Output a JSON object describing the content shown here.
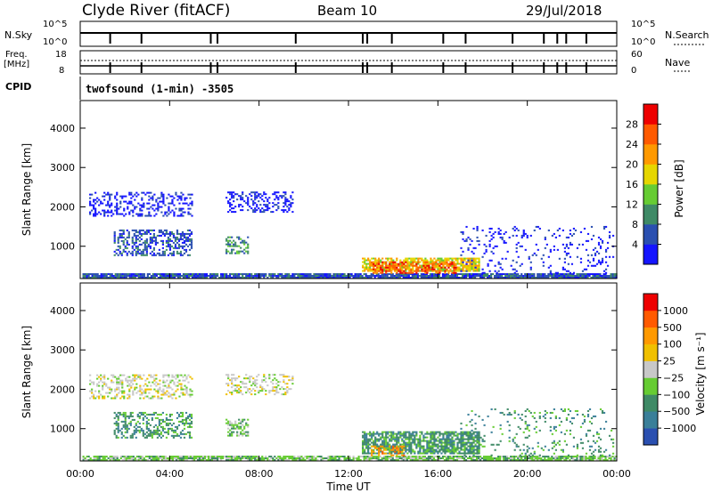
{
  "header": {
    "title": "Clyde River (fitACF)",
    "beam": "Beam 10",
    "date": "29/Jul/2018"
  },
  "strips": {
    "nsky_label": "N.Sky",
    "nsearch_label": "N.Search",
    "nsky_top_tick": "10^5",
    "nsky_bottom_tick": "10^0",
    "nsearch_top_tick": "10^5",
    "nsearch_bottom_tick": "10^0",
    "freq_label": "Freq.",
    "freq_unit": "[MHz]",
    "freq_top_tick": "18",
    "freq_bottom_tick": "8",
    "nave_label": "Nave",
    "nave_top_tick": "60",
    "nave_bottom_tick": "0",
    "cpid_label": "CPID",
    "cpid_text": "twofsound (1-min) -3505"
  },
  "colorbars": {
    "power": {
      "label": "Power [dB]",
      "ticks": [
        "28",
        "24",
        "20",
        "16",
        "12",
        "8",
        "4"
      ],
      "colors": [
        "#1414ff",
        "#2a4fb0",
        "#3f8a66",
        "#66cc33",
        "#e6d600",
        "#ff9900",
        "#ff5a00",
        "#ee0000"
      ]
    },
    "velocity": {
      "label": "Velocity [m s⁻¹]",
      "ticks": [
        "1000",
        "500",
        "100",
        "25",
        "−25",
        "−100",
        "−500",
        "−1000"
      ],
      "colors": [
        "#2a4fb0",
        "#3a7f99",
        "#3f8a66",
        "#66cc33",
        "#c8c8c8",
        "#f0c000",
        "#ff9900",
        "#ff5a00",
        "#ee0000"
      ]
    }
  },
  "chart_data": [
    {
      "type": "heatmap",
      "panel": "power",
      "xlabel": "Time UT",
      "ylabel": "Slant Range [km]",
      "x_ticks": [
        "00:00",
        "04:00",
        "08:00",
        "12:00",
        "16:00",
        "20:00",
        "00:00"
      ],
      "xlim_hours": [
        0,
        24
      ],
      "y_ticks": [
        1000,
        2000,
        3000,
        4000
      ],
      "ylim": [
        180,
        4700
      ],
      "regions": [
        {
          "t0": 0.1,
          "t1": 24.0,
          "r0": 180,
          "r1": 300,
          "level": 1,
          "density": 0.9
        },
        {
          "t0": 0.4,
          "t1": 5.0,
          "r0": 1750,
          "r1": 2350,
          "level": 0,
          "density": 0.35
        },
        {
          "t0": 6.5,
          "t1": 9.5,
          "r0": 1850,
          "r1": 2350,
          "level": 0,
          "density": 0.35
        },
        {
          "t0": 1.5,
          "t1": 5.0,
          "r0": 750,
          "r1": 1400,
          "level": 1,
          "density": 0.45
        },
        {
          "t0": 6.5,
          "t1": 7.5,
          "r0": 800,
          "r1": 1250,
          "level": 2,
          "density": 0.5
        },
        {
          "t0": 12.6,
          "t1": 17.8,
          "r0": 350,
          "r1": 700,
          "level": 4,
          "density": 0.75
        },
        {
          "t0": 13.0,
          "t1": 16.8,
          "r0": 300,
          "r1": 600,
          "level": 6,
          "density": 0.6
        },
        {
          "t0": 17.0,
          "t1": 23.8,
          "r0": 300,
          "r1": 1500,
          "level": 0,
          "density": 0.12
        }
      ]
    },
    {
      "type": "heatmap",
      "panel": "velocity",
      "xlabel": "Time UT",
      "ylabel": "Slant Range [km]",
      "x_ticks": [
        "00:00",
        "04:00",
        "08:00",
        "12:00",
        "16:00",
        "20:00",
        "00:00"
      ],
      "xlim_hours": [
        0,
        24
      ],
      "y_ticks": [
        1000,
        2000,
        3000,
        4000
      ],
      "ylim": [
        180,
        4700
      ],
      "regions": [
        {
          "t0": 0.1,
          "t1": 24.0,
          "r0": 180,
          "r1": 300,
          "level": 3,
          "density": 0.85
        },
        {
          "t0": 0.4,
          "t1": 5.0,
          "r0": 1750,
          "r1": 2350,
          "level": 4,
          "density": 0.35
        },
        {
          "t0": 6.5,
          "t1": 9.5,
          "r0": 1850,
          "r1": 2350,
          "level": 4,
          "density": 0.35
        },
        {
          "t0": 1.5,
          "t1": 5.0,
          "r0": 750,
          "r1": 1400,
          "level": 2,
          "density": 0.45
        },
        {
          "t0": 6.5,
          "t1": 7.5,
          "r0": 800,
          "r1": 1250,
          "level": 3,
          "density": 0.5
        },
        {
          "t0": 12.6,
          "t1": 17.8,
          "r0": 350,
          "r1": 900,
          "level": 2,
          "density": 0.75
        },
        {
          "t0": 13.0,
          "t1": 14.5,
          "r0": 300,
          "r1": 550,
          "level": 6,
          "density": 0.5
        },
        {
          "t0": 17.0,
          "t1": 23.8,
          "r0": 300,
          "r1": 1500,
          "level": 2,
          "density": 0.12
        }
      ]
    }
  ]
}
